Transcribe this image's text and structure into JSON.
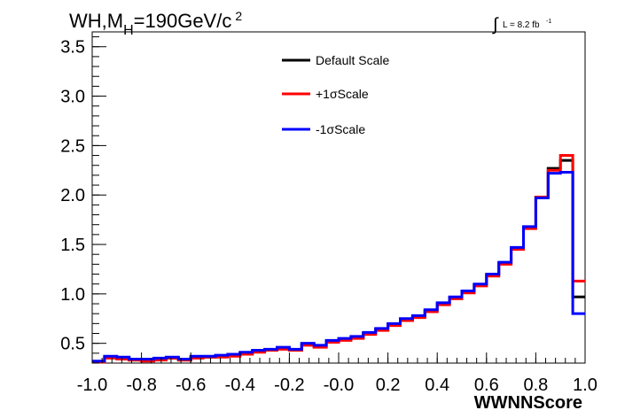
{
  "chart_data": {
    "type": "line",
    "step": true,
    "title_parts": {
      "main": "WH,M",
      "sub": "H",
      "rest": "=190GeV/c",
      "sup": "2"
    },
    "lumi_label": "L = 8.2 fb",
    "lumi_sup": "-1",
    "xlabel": "WWNNScore",
    "ylabel": "",
    "xlim": [
      -1.0,
      1.0
    ],
    "ylim": [
      0.3,
      3.65
    ],
    "x_ticks": [
      "-1.0",
      "-0.8",
      "-0.6",
      "-0.4",
      "-0.2",
      "-0.0",
      "0.2",
      "0.4",
      "0.6",
      "0.8",
      "1.0"
    ],
    "y_ticks": [
      "0.5",
      "1.0",
      "1.5",
      "2.0",
      "2.5",
      "3.0",
      "3.5"
    ],
    "legend_position": "top-center",
    "bin_edges": [
      -1.0,
      -0.95,
      -0.9,
      -0.85,
      -0.8,
      -0.75,
      -0.7,
      -0.65,
      -0.6,
      -0.55,
      -0.5,
      -0.45,
      -0.4,
      -0.35,
      -0.3,
      -0.25,
      -0.2,
      -0.15,
      -0.1,
      -0.05,
      0.0,
      0.05,
      0.1,
      0.15,
      0.2,
      0.25,
      0.3,
      0.35,
      0.4,
      0.45,
      0.5,
      0.55,
      0.6,
      0.65,
      0.7,
      0.75,
      0.8,
      0.85,
      0.9,
      0.95,
      1.0
    ],
    "series": [
      {
        "name": "Default Scale",
        "color": "#000000",
        "values": [
          0.31,
          0.36,
          0.35,
          0.33,
          0.33,
          0.34,
          0.35,
          0.33,
          0.36,
          0.36,
          0.37,
          0.38,
          0.4,
          0.42,
          0.43,
          0.45,
          0.43,
          0.49,
          0.47,
          0.52,
          0.54,
          0.56,
          0.6,
          0.64,
          0.69,
          0.74,
          0.77,
          0.83,
          0.9,
          0.96,
          1.02,
          1.09,
          1.19,
          1.31,
          1.46,
          1.67,
          1.98,
          2.27,
          2.35,
          0.97
        ]
      },
      {
        "name": "+1σScale",
        "color": "#ff0000",
        "values": [
          0.31,
          0.35,
          0.34,
          0.33,
          0.32,
          0.33,
          0.35,
          0.33,
          0.35,
          0.36,
          0.36,
          0.37,
          0.39,
          0.41,
          0.43,
          0.44,
          0.43,
          0.48,
          0.46,
          0.51,
          0.53,
          0.55,
          0.59,
          0.63,
          0.68,
          0.73,
          0.76,
          0.82,
          0.89,
          0.95,
          1.01,
          1.08,
          1.18,
          1.3,
          1.45,
          1.66,
          1.98,
          2.25,
          2.4,
          1.13
        ]
      },
      {
        "name": "-1σScale",
        "color": "#0000ff",
        "values": [
          0.32,
          0.37,
          0.36,
          0.34,
          0.34,
          0.35,
          0.36,
          0.34,
          0.37,
          0.37,
          0.38,
          0.39,
          0.41,
          0.43,
          0.44,
          0.46,
          0.44,
          0.5,
          0.48,
          0.53,
          0.55,
          0.57,
          0.61,
          0.65,
          0.7,
          0.75,
          0.78,
          0.84,
          0.91,
          0.97,
          1.03,
          1.1,
          1.2,
          1.32,
          1.47,
          1.68,
          1.97,
          2.22,
          2.23,
          0.8
        ]
      }
    ]
  }
}
